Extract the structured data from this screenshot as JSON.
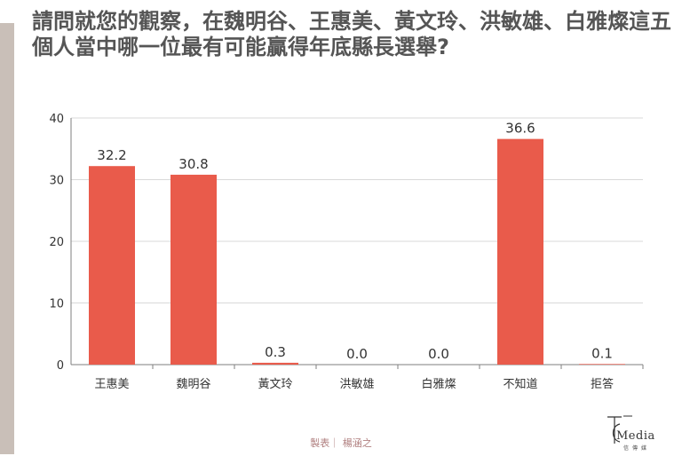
{
  "title": "請問就您的觀察，在魏明谷、王惠美、黃文玲、洪敏雄、白雅燦這五個人當中哪一位最有可能贏得年底縣長選舉?",
  "credit": "製表｜ 楊涵之",
  "logo": {
    "word": "Media",
    "sub": "信傳媒"
  },
  "colors": {
    "bar": "#e95b4b",
    "grid": "#d9d9d9",
    "axis": "#7f7f7f",
    "text": "#333333"
  },
  "chart_data": {
    "type": "bar",
    "categories": [
      "王惠美",
      "魏明谷",
      "黃文玲",
      "洪敏雄",
      "白雅燦",
      "不知道",
      "拒答"
    ],
    "values": [
      32.2,
      30.8,
      0.3,
      0.0,
      0.0,
      36.6,
      0.1
    ],
    "value_labels": [
      "32.2",
      "30.8",
      "0.3",
      "0.0",
      "0.0",
      "36.6",
      "0.1"
    ],
    "ylim": [
      0,
      40
    ],
    "yticks": [
      0,
      10,
      20,
      30,
      40
    ],
    "grid": true,
    "legend": "none"
  }
}
